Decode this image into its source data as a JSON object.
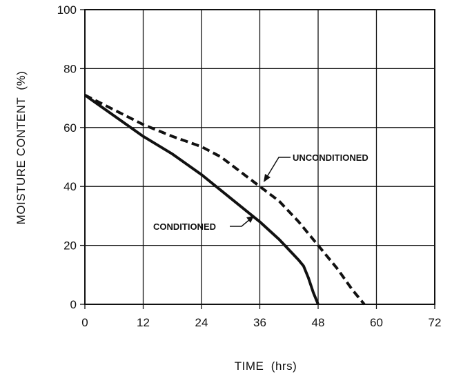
{
  "chart_data": {
    "type": "line",
    "xlabel": "TIME  (hrs)",
    "ylabel": "MOISTURE CONTENT  (%)",
    "xlim": [
      0,
      72
    ],
    "ylim": [
      0,
      100
    ],
    "x_ticks": [
      "0",
      "12",
      "24",
      "36",
      "48",
      "60",
      "72"
    ],
    "y_ticks": [
      "0",
      "20",
      "40",
      "60",
      "80",
      "100"
    ],
    "grid": true,
    "series": [
      {
        "name": "UNCONDITIONED",
        "style": "dashed",
        "points": [
          [
            0,
            71
          ],
          [
            6,
            66
          ],
          [
            12,
            61
          ],
          [
            18,
            57
          ],
          [
            24,
            53.5
          ],
          [
            28,
            50
          ],
          [
            32,
            45
          ],
          [
            36,
            40
          ],
          [
            40,
            35
          ],
          [
            44,
            28
          ],
          [
            48,
            20
          ],
          [
            52,
            12
          ],
          [
            55,
            5
          ],
          [
            57.5,
            0
          ]
        ]
      },
      {
        "name": "CONDITIONED",
        "style": "solid",
        "points": [
          [
            0,
            71
          ],
          [
            6,
            64
          ],
          [
            12,
            57
          ],
          [
            18,
            51
          ],
          [
            24,
            44
          ],
          [
            30,
            36
          ],
          [
            36,
            28
          ],
          [
            40,
            22
          ],
          [
            44,
            15
          ],
          [
            45,
            13
          ],
          [
            46,
            9
          ],
          [
            47,
            4
          ],
          [
            48,
            0
          ]
        ]
      }
    ]
  },
  "colors": {
    "line": "#111111",
    "grid": "#111111"
  }
}
